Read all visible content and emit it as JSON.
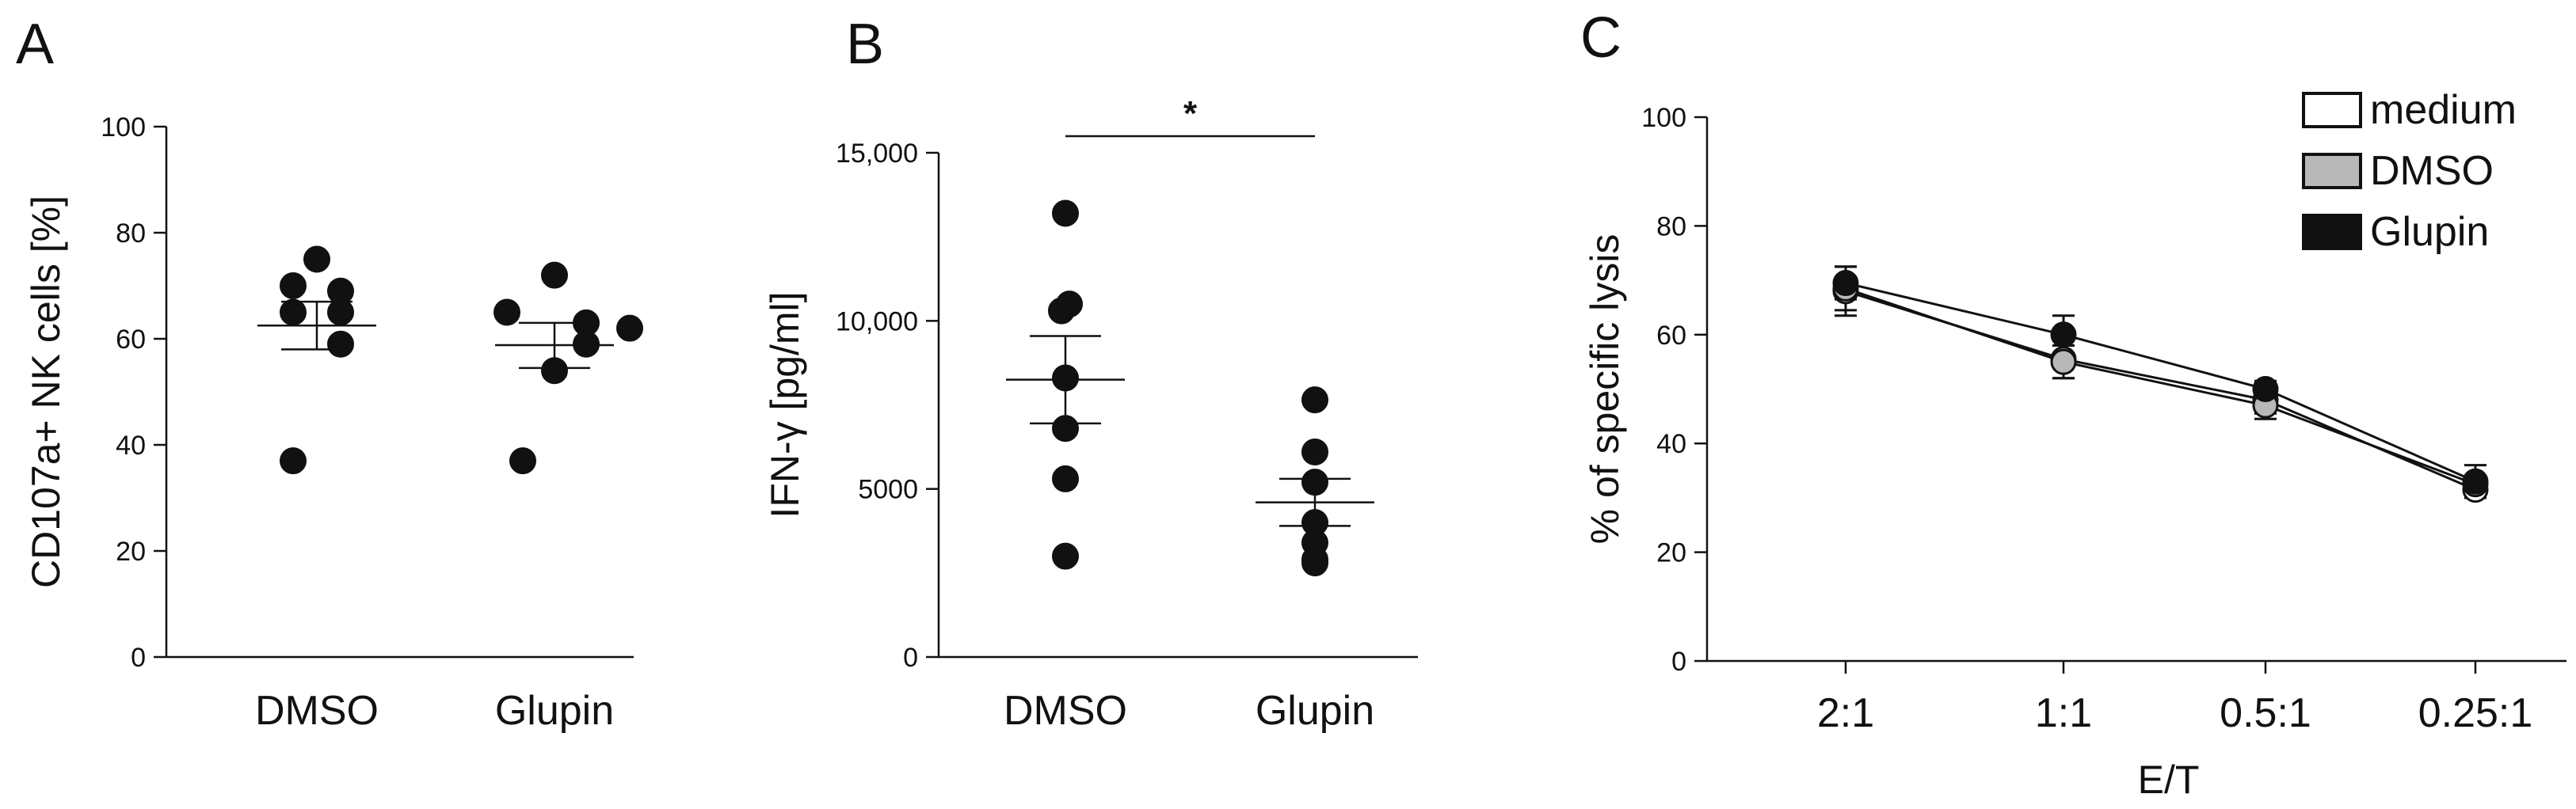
{
  "chart_data": [
    {
      "panel": "A",
      "type": "scatter",
      "ylabel": "CD107a+ NK cells [%]",
      "ylim": [
        0,
        100
      ],
      "yticks": [
        0,
        20,
        40,
        60,
        80,
        100
      ],
      "ytick_labels": [
        "0",
        "20",
        "40",
        "60",
        "80",
        "100"
      ],
      "categories": [
        "DMSO",
        "Glupin"
      ],
      "groups": [
        {
          "category": "DMSO",
          "points": [
            75,
            70,
            69,
            65,
            65,
            59,
            37
          ],
          "mean": 62.5,
          "sem_low": 58,
          "sem_high": 67
        },
        {
          "category": "Glupin",
          "points": [
            72,
            65,
            63,
            62,
            59,
            54,
            37
          ],
          "mean": 58.8,
          "sem_low": 54.5,
          "sem_high": 63
        }
      ]
    },
    {
      "panel": "B",
      "type": "scatter",
      "ylabel": "IFN-γ [pg/ml]",
      "ylim": [
        0,
        15000
      ],
      "yticks": [
        0,
        5000,
        10000,
        15000
      ],
      "ytick_labels": [
        "0",
        "5000",
        "10,000",
        "15,000"
      ],
      "categories": [
        "DMSO",
        "Glupin"
      ],
      "significance": "*",
      "groups": [
        {
          "category": "DMSO",
          "points": [
            13200,
            10500,
            10300,
            8300,
            6800,
            5300,
            3000
          ],
          "mean": 8250,
          "sem_low": 6950,
          "sem_high": 9550
        },
        {
          "category": "Glupin",
          "points": [
            7650,
            6100,
            5200,
            4000,
            3400,
            2900,
            2800
          ],
          "mean": 4600,
          "sem_low": 3900,
          "sem_high": 5300
        }
      ]
    },
    {
      "panel": "C",
      "type": "line",
      "xlabel": "E/T",
      "ylabel": "% of specific lysis",
      "ylim": [
        0,
        100
      ],
      "yticks": [
        0,
        20,
        40,
        60,
        80,
        100
      ],
      "ytick_labels": [
        "0",
        "20",
        "40",
        "60",
        "80",
        "100"
      ],
      "categories": [
        "2:1",
        "1:1",
        "0.5:1",
        "0.25:1"
      ],
      "legend_position": "top-right",
      "series": [
        {
          "name": "medium",
          "color": "#ffffff",
          "values": [
            68,
            55.5,
            48,
            31.5
          ],
          "err": [
            4.5,
            3.5,
            2.5,
            1.5
          ]
        },
        {
          "name": "DMSO",
          "color": "#b8b8b8",
          "values": [
            68.5,
            55,
            47,
            32.5
          ],
          "err": [
            4,
            3,
            2.5,
            1.5
          ]
        },
        {
          "name": "Glupin",
          "color": "#111111",
          "values": [
            69.5,
            60,
            50,
            33
          ],
          "err": [
            3,
            3.5,
            1.5,
            3
          ]
        }
      ]
    }
  ]
}
